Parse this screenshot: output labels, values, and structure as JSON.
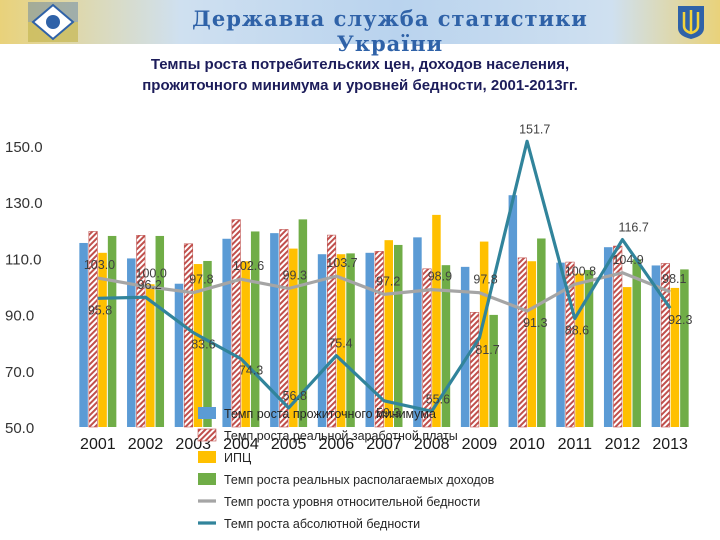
{
  "header": {
    "agency": "Державна служба статистики України",
    "logo_icon": "statistics-service-logo-icon",
    "emblem_icon": "trident-emblem-icon"
  },
  "chart_data": {
    "type": "bar",
    "title_line1": "Темпы роста потребительских цен, доходов населения,",
    "title_line2": "прожиточного минимума и уровней бедности, 2001-2013гг.",
    "categories": [
      "2001",
      "2002",
      "2003",
      "2004",
      "2005",
      "2006",
      "2007",
      "2008",
      "2009",
      "2010",
      "2011",
      "2012",
      "2013"
    ],
    "ylim": [
      50,
      155
    ],
    "yticks": [
      "50.0",
      "70.0",
      "90.0",
      "110.0",
      "130.0",
      "150.0"
    ],
    "bar_series": [
      {
        "name": "Темп роста прожиточного минимума",
        "color": "#5b9bd5",
        "pattern": "solid",
        "values": [
          115.5,
          110,
          101,
          117,
          119,
          111.5,
          112,
          117.5,
          107,
          132.5,
          108.5,
          114,
          107.5
        ]
      },
      {
        "name": "Темп роста реальной заработной платы",
        "color": "#c0504d",
        "pattern": "hatch",
        "values": [
          119.6,
          118.2,
          115.2,
          123.8,
          120.3,
          118.3,
          112.5,
          106.3,
          90.8,
          110.2,
          108.7,
          114.4,
          108.2
        ]
      },
      {
        "name": "ИПЦ",
        "color": "#ffc000",
        "pattern": "solid",
        "values": [
          112,
          100.8,
          108,
          109,
          113.5,
          111.5,
          116.5,
          125.5,
          116,
          109,
          104.6,
          99.8,
          99.5
        ]
      },
      {
        "name": "Темп роста реальных располагаемых доходов",
        "color": "#70ad47",
        "pattern": "solid",
        "values": [
          118,
          118,
          109.1,
          119.6,
          123.9,
          111.8,
          114.8,
          107.6,
          89.9,
          117.1,
          105.9,
          109.7,
          106.1
        ]
      }
    ],
    "line_series": [
      {
        "name": "Темп роста уровня относительной бедности",
        "color": "#a5a5a5",
        "values": [
          103,
          100,
          97.8,
          102.6,
          99.3,
          103.7,
          97.2,
          98.9,
          97.8,
          91.3,
          100.8,
          104.9,
          98.1
        ],
        "labels": [
          "103.0",
          "100.0",
          "97.8",
          "102.6",
          "99.3",
          "103.7",
          "97.2",
          "98.9",
          "97.8",
          "91.3",
          "100.8",
          "104.9",
          "98.1"
        ]
      },
      {
        "name": "Темп роста абсолютной бедности",
        "color": "#31849b",
        "values": [
          95.8,
          96.2,
          83.6,
          74.3,
          56.8,
          75.4,
          59.3,
          55.6,
          81.7,
          151.7,
          88.6,
          116.7,
          92.3
        ],
        "labels": [
          "95.8",
          "96.2",
          "83.6",
          "74.3",
          "56.8",
          "75.4",
          "59.3",
          "55.6",
          "81.7",
          "151.7",
          "88.6",
          "116.7",
          "92.3"
        ]
      }
    ],
    "legend_position": "bottom-center",
    "grid": false
  }
}
